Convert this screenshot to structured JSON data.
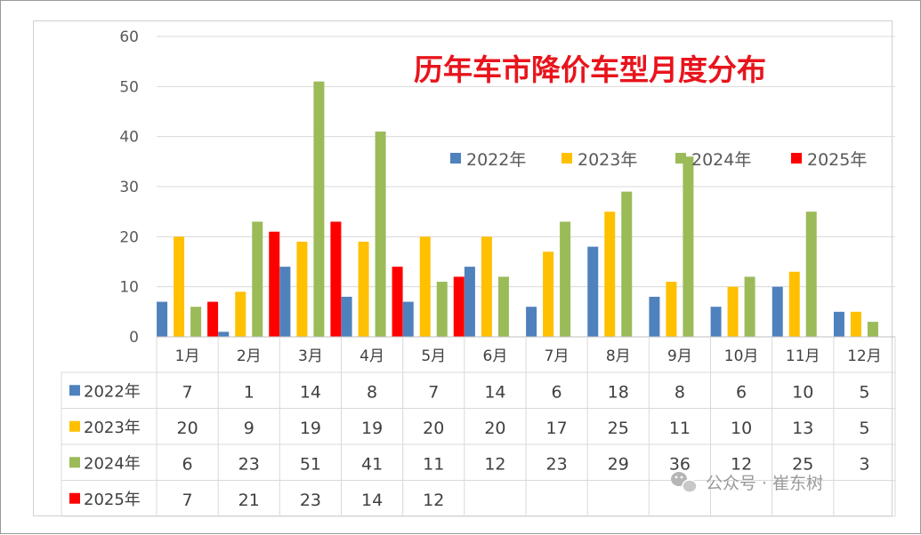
{
  "chart_data": {
    "type": "bar",
    "title": "历年车市降价车型月度分布",
    "categories": [
      "1月",
      "2月",
      "3月",
      "4月",
      "5月",
      "6月",
      "7月",
      "8月",
      "9月",
      "10月",
      "11月",
      "12月"
    ],
    "series": [
      {
        "name": "2022年",
        "color": "#4f81bd",
        "values": [
          7,
          1,
          14,
          8,
          7,
          14,
          6,
          18,
          8,
          6,
          10,
          5
        ]
      },
      {
        "name": "2023年",
        "color": "#ffc000",
        "values": [
          20,
          9,
          19,
          19,
          20,
          20,
          17,
          25,
          11,
          10,
          13,
          5
        ]
      },
      {
        "name": "2024年",
        "color": "#9bbb59",
        "values": [
          6,
          23,
          51,
          41,
          11,
          12,
          23,
          29,
          36,
          12,
          25,
          3
        ]
      },
      {
        "name": "2025年",
        "color": "#ff0000",
        "values": [
          7,
          21,
          23,
          14,
          12,
          null,
          null,
          null,
          null,
          null,
          null,
          null
        ]
      }
    ],
    "y_ticks": [
      "0",
      "10",
      "20",
      "30",
      "40",
      "50",
      "60"
    ],
    "ylim": [
      0,
      60
    ],
    "grid": true,
    "legend": "right, below title",
    "data_table": true
  },
  "watermark": {
    "icon": "wechat-icon",
    "text": "公众号 · 崔东树"
  }
}
